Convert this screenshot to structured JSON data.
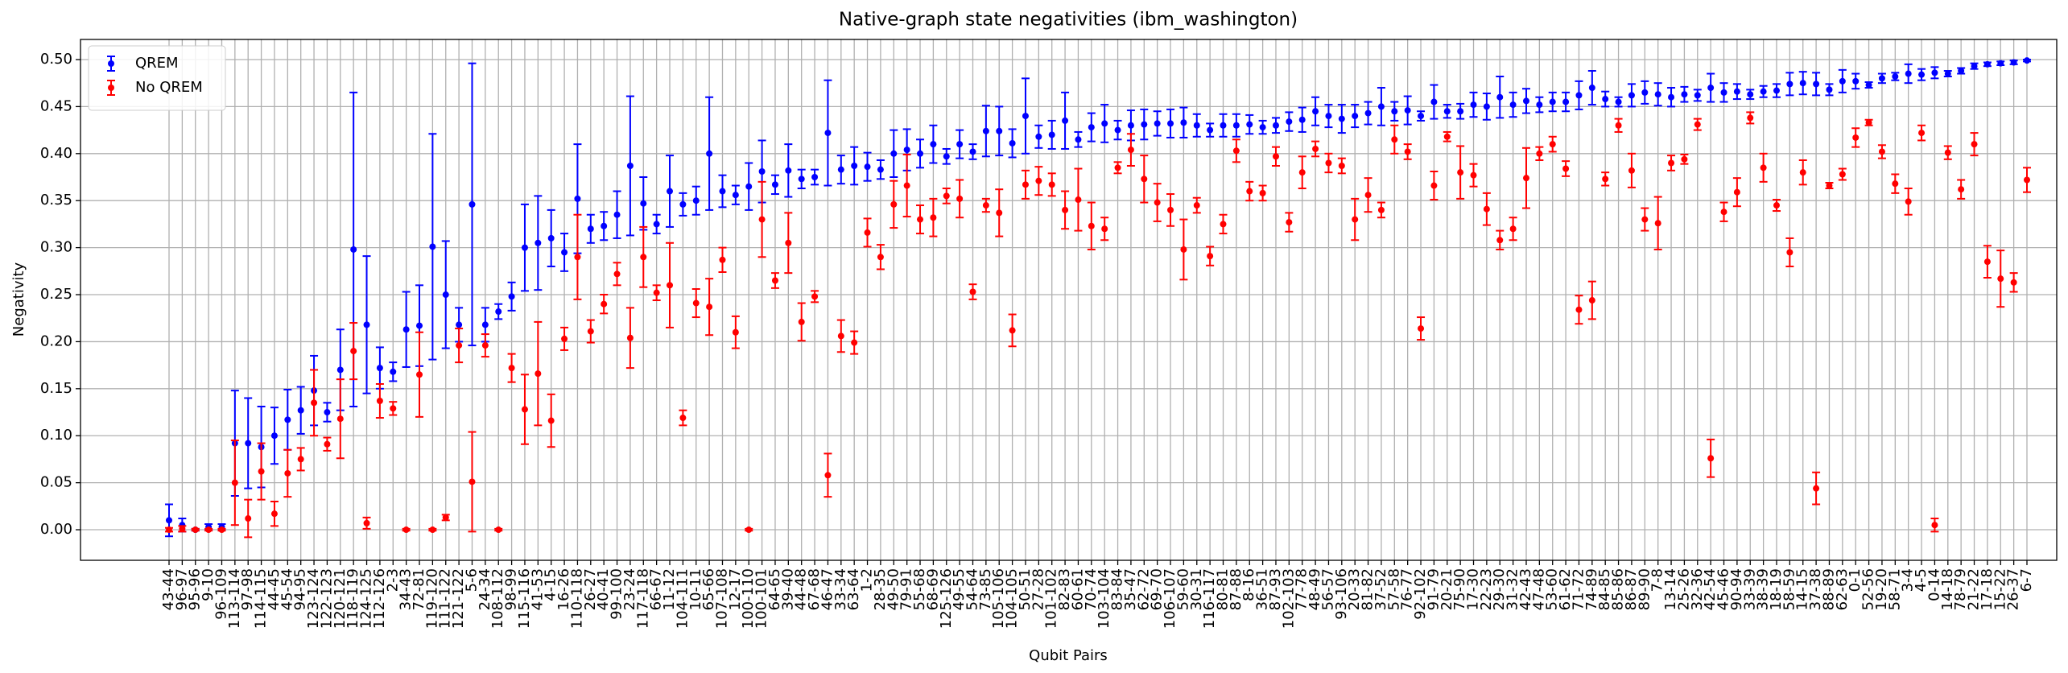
{
  "chart_data": {
    "type": "errorbar",
    "title": "Native-graph state negativities (ibm_washington)",
    "x_label": "Qubit Pairs",
    "y_label": "Negativity",
    "grid": true,
    "legend_position": "upper left",
    "ylim": [
      -0.0325,
      0.5214
    ],
    "yticks": [
      {
        "value": 0,
        "label": "0.00"
      },
      0.05,
      {
        "value": 0.1,
        "label": "0.10"
      },
      0.15,
      {
        "value": 0.2,
        "label": "0.20"
      },
      0.25,
      {
        "value": 0.3,
        "label": "0.30"
      },
      0.35,
      {
        "value": 0.4,
        "label": "0.40"
      },
      0.45,
      {
        "value": 0.5,
        "label": "0.50"
      }
    ],
    "categories": [
      "43-44",
      "96-97",
      "95-96",
      "9-10",
      "96-109",
      "113-114",
      "97-98",
      "114-115",
      "44-45",
      "45-54",
      "94-95",
      "123-124",
      "122-123",
      "120-121",
      "118-119",
      "124-125",
      "112-126",
      "2-3",
      "34-43",
      "72-81",
      "119-120",
      "111-122",
      "121-122",
      "5-6",
      "24-34",
      "108-112",
      "98-99",
      "115-116",
      "41-53",
      "4-15",
      "16-26",
      "110-118",
      "26-27",
      "40-41",
      "99-100",
      "23-24",
      "117-118",
      "66-67",
      "11-12",
      "104-111",
      "10-11",
      "65-66",
      "107-108",
      "12-17",
      "100-110",
      "100-101",
      "64-65",
      "39-40",
      "44-48",
      "67-68",
      "46-47",
      "33-34",
      "63-64",
      "1-2",
      "28-35",
      "49-50",
      "79-91",
      "55-68",
      "68-69",
      "125-126",
      "49-55",
      "54-64",
      "73-85",
      "105-106",
      "104-105",
      "50-51",
      "27-28",
      "101-102",
      "82-83",
      "60-61",
      "70-74",
      "103-104",
      "83-84",
      "35-47",
      "62-72",
      "69-70",
      "106-107",
      "59-60",
      "30-31",
      "116-117",
      "80-81",
      "87-88",
      "8-16",
      "36-51",
      "87-93",
      "102-103",
      "77-78",
      "48-49",
      "56-57",
      "93-106",
      "20-33",
      "81-82",
      "37-52",
      "57-58",
      "76-77",
      "92-102",
      "91-79",
      "20-21",
      "75-90",
      "17-30",
      "22-23",
      "29-30",
      "31-32",
      "42-43",
      "47-48",
      "53-60",
      "61-62",
      "71-72",
      "74-89",
      "84-85",
      "85-86",
      "86-87",
      "89-90",
      "7-8",
      "13-14",
      "25-26",
      "32-36",
      "42-54",
      "45-46",
      "90-94",
      "33-39",
      "38-39",
      "18-19",
      "58-59",
      "14-15",
      "37-38",
      "88-89",
      "62-63",
      "0-1",
      "52-56",
      "19-20",
      "58-71",
      "3-4",
      "4-5",
      "0-14",
      "14-18",
      "78-79",
      "21-22",
      "17-18",
      "15-22",
      "26-37",
      "6-7"
    ],
    "series": [
      {
        "name": "QREM",
        "color": "#0000ff",
        "values": [
          0.01,
          0.005,
          0.0,
          0.003,
          0.003,
          0.092,
          0.092,
          0.088,
          0.1,
          0.117,
          0.127,
          0.148,
          0.125,
          0.17,
          0.298,
          0.218,
          0.172,
          0.168,
          0.213,
          0.217,
          0.301,
          0.25,
          0.218,
          0.346,
          0.218,
          0.232,
          0.248,
          0.3,
          0.305,
          0.31,
          0.295,
          0.352,
          0.32,
          0.323,
          0.335,
          0.387,
          0.347,
          0.325,
          0.36,
          0.346,
          0.35,
          0.4,
          0.36,
          0.356,
          0.365,
          0.381,
          0.367,
          0.382,
          0.373,
          0.375,
          0.422,
          0.383,
          0.387,
          0.386,
          0.383,
          0.4,
          0.404,
          0.4,
          0.41,
          0.397,
          0.41,
          0.402,
          0.424,
          0.424,
          0.411,
          0.44,
          0.418,
          0.42,
          0.435,
          0.415,
          0.428,
          0.432,
          0.425,
          0.43,
          0.431,
          0.432,
          0.432,
          0.433,
          0.43,
          0.425,
          0.43,
          0.43,
          0.431,
          0.428,
          0.43,
          0.434,
          0.436,
          0.445,
          0.44,
          0.437,
          0.44,
          0.443,
          0.45,
          0.445,
          0.446,
          0.44,
          0.455,
          0.445,
          0.445,
          0.452,
          0.45,
          0.46,
          0.452,
          0.456,
          0.452,
          0.455,
          0.455,
          0.462,
          0.47,
          0.458,
          0.455,
          0.462,
          0.465,
          0.463,
          0.46,
          0.463,
          0.462,
          0.47,
          0.465,
          0.466,
          0.463,
          0.466,
          0.467,
          0.474,
          0.475,
          0.474,
          0.468,
          0.477,
          0.477,
          0.473,
          0.48,
          0.482,
          0.485,
          0.484,
          0.486,
          0.485,
          0.488,
          0.493,
          0.495,
          0.496,
          0.497,
          0.499
        ],
        "errors": [
          0.017,
          0.007,
          0.001,
          0.003,
          0.003,
          0.056,
          0.048,
          0.043,
          0.03,
          0.032,
          0.025,
          0.037,
          0.01,
          0.043,
          0.167,
          0.073,
          0.022,
          0.01,
          0.04,
          0.043,
          0.12,
          0.057,
          0.018,
          0.15,
          0.018,
          0.008,
          0.015,
          0.046,
          0.05,
          0.03,
          0.02,
          0.058,
          0.015,
          0.015,
          0.025,
          0.074,
          0.028,
          0.01,
          0.038,
          0.012,
          0.015,
          0.06,
          0.017,
          0.01,
          0.025,
          0.033,
          0.01,
          0.028,
          0.01,
          0.008,
          0.056,
          0.015,
          0.02,
          0.015,
          0.01,
          0.025,
          0.022,
          0.015,
          0.02,
          0.008,
          0.015,
          0.008,
          0.027,
          0.026,
          0.015,
          0.04,
          0.012,
          0.015,
          0.03,
          0.008,
          0.015,
          0.02,
          0.01,
          0.016,
          0.016,
          0.013,
          0.015,
          0.016,
          0.012,
          0.007,
          0.012,
          0.012,
          0.01,
          0.007,
          0.008,
          0.01,
          0.013,
          0.015,
          0.012,
          0.015,
          0.012,
          0.012,
          0.02,
          0.01,
          0.015,
          0.005,
          0.018,
          0.007,
          0.008,
          0.013,
          0.014,
          0.022,
          0.013,
          0.013,
          0.008,
          0.01,
          0.01,
          0.015,
          0.018,
          0.008,
          0.005,
          0.012,
          0.012,
          0.012,
          0.01,
          0.008,
          0.006,
          0.015,
          0.01,
          0.008,
          0.005,
          0.006,
          0.007,
          0.012,
          0.012,
          0.012,
          0.006,
          0.012,
          0.008,
          0.003,
          0.005,
          0.004,
          0.01,
          0.006,
          0.006,
          0.003,
          0.003,
          0.003,
          0.002,
          0.002,
          0.002,
          0.001
        ]
      },
      {
        "name": "No QREM",
        "color": "#ff0000",
        "values": [
          0.0,
          0.001,
          0.0,
          0.0,
          0.0,
          0.05,
          0.012,
          0.062,
          0.017,
          0.06,
          0.075,
          0.135,
          0.091,
          0.118,
          0.19,
          0.007,
          0.137,
          0.129,
          0.0,
          0.165,
          0.0,
          0.013,
          0.196,
          0.051,
          0.196,
          0.0,
          0.172,
          0.128,
          0.166,
          0.116,
          0.203,
          0.29,
          0.211,
          0.24,
          0.272,
          0.204,
          0.29,
          0.252,
          0.26,
          0.119,
          0.241,
          0.237,
          0.287,
          0.21,
          0.0,
          0.33,
          0.265,
          0.305,
          0.221,
          0.248,
          0.058,
          0.206,
          0.199,
          0.316,
          0.29,
          0.346,
          0.366,
          0.33,
          0.332,
          0.355,
          0.352,
          0.253,
          0.345,
          0.337,
          0.212,
          0.367,
          0.371,
          0.367,
          0.34,
          0.351,
          0.323,
          0.32,
          0.385,
          0.404,
          0.373,
          0.348,
          0.34,
          0.298,
          0.345,
          0.291,
          0.325,
          0.403,
          0.36,
          0.358,
          0.397,
          0.327,
          0.38,
          0.405,
          0.39,
          0.387,
          0.33,
          0.356,
          0.34,
          0.415,
          0.402,
          0.214,
          0.366,
          0.418,
          0.38,
          0.377,
          0.341,
          0.308,
          0.32,
          0.374,
          0.4,
          0.41,
          0.384,
          0.234,
          0.244,
          0.373,
          0.43,
          0.382,
          0.33,
          0.326,
          0.39,
          0.394,
          0.431,
          0.076,
          0.338,
          0.359,
          0.438,
          0.385,
          0.345,
          0.295,
          0.38,
          0.044,
          0.366,
          0.378,
          0.417,
          0.433,
          0.402,
          0.368,
          0.349,
          0.422,
          0.005,
          0.401,
          0.362,
          0.41,
          0.285,
          0.267,
          0.263,
          0.372
        ],
        "errors": [
          0.002,
          0.003,
          0.001,
          0.001,
          0.001,
          0.045,
          0.02,
          0.03,
          0.013,
          0.025,
          0.012,
          0.035,
          0.007,
          0.042,
          0.03,
          0.006,
          0.018,
          0.007,
          0.001,
          0.045,
          0.001,
          0.003,
          0.018,
          0.053,
          0.012,
          0.001,
          0.015,
          0.037,
          0.055,
          0.028,
          0.012,
          0.045,
          0.012,
          0.01,
          0.012,
          0.032,
          0.032,
          0.008,
          0.045,
          0.008,
          0.015,
          0.03,
          0.013,
          0.017,
          0.001,
          0.04,
          0.008,
          0.032,
          0.02,
          0.006,
          0.023,
          0.017,
          0.012,
          0.015,
          0.013,
          0.025,
          0.033,
          0.015,
          0.02,
          0.008,
          0.02,
          0.008,
          0.007,
          0.025,
          0.017,
          0.015,
          0.015,
          0.012,
          0.02,
          0.033,
          0.025,
          0.012,
          0.006,
          0.017,
          0.025,
          0.02,
          0.017,
          0.032,
          0.008,
          0.01,
          0.01,
          0.012,
          0.01,
          0.008,
          0.01,
          0.01,
          0.017,
          0.008,
          0.01,
          0.008,
          0.022,
          0.018,
          0.008,
          0.015,
          0.008,
          0.012,
          0.015,
          0.005,
          0.028,
          0.012,
          0.017,
          0.01,
          0.012,
          0.032,
          0.007,
          0.008,
          0.008,
          0.015,
          0.02,
          0.007,
          0.007,
          0.018,
          0.012,
          0.028,
          0.008,
          0.005,
          0.006,
          0.02,
          0.01,
          0.015,
          0.006,
          0.015,
          0.006,
          0.015,
          0.013,
          0.017,
          0.003,
          0.006,
          0.01,
          0.003,
          0.007,
          0.01,
          0.014,
          0.008,
          0.007,
          0.007,
          0.01,
          0.012,
          0.017,
          0.03,
          0.01,
          0.013
        ]
      }
    ]
  }
}
